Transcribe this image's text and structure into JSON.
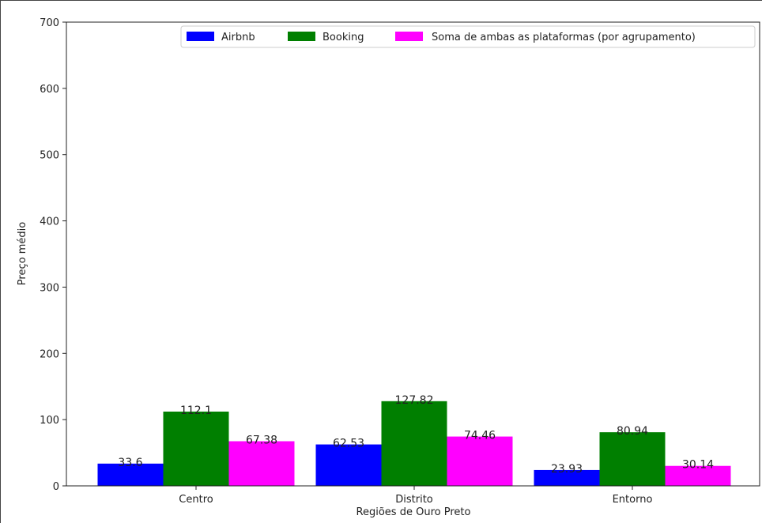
{
  "chart_data": {
    "type": "bar",
    "categories": [
      "Centro",
      "Distrito",
      "Entorno"
    ],
    "series": [
      {
        "name": "Airbnb",
        "color": "#0000ff",
        "values": [
          33.6,
          62.53,
          23.93
        ],
        "labels": [
          "33.6",
          "62.53",
          "23.93"
        ]
      },
      {
        "name": "Booking",
        "color": "#007f00",
        "values": [
          112.1,
          127.82,
          80.94
        ],
        "labels": [
          "112.1",
          "127.82",
          "80.94"
        ]
      },
      {
        "name": "Soma de ambas as plataformas (por agrupamento)",
        "color": "#ff00ff",
        "values": [
          67.38,
          74.46,
          30.14
        ],
        "labels": [
          "67.38",
          "74.46",
          "30.14"
        ]
      }
    ],
    "xlabel": "Regiões de Ouro Preto",
    "ylabel": "Preço médio",
    "ylim": [
      0,
      700
    ],
    "yticks": [
      "0",
      "100",
      "200",
      "300",
      "400",
      "500",
      "600",
      "700"
    ],
    "grid": false,
    "legend_position": "top-right"
  }
}
